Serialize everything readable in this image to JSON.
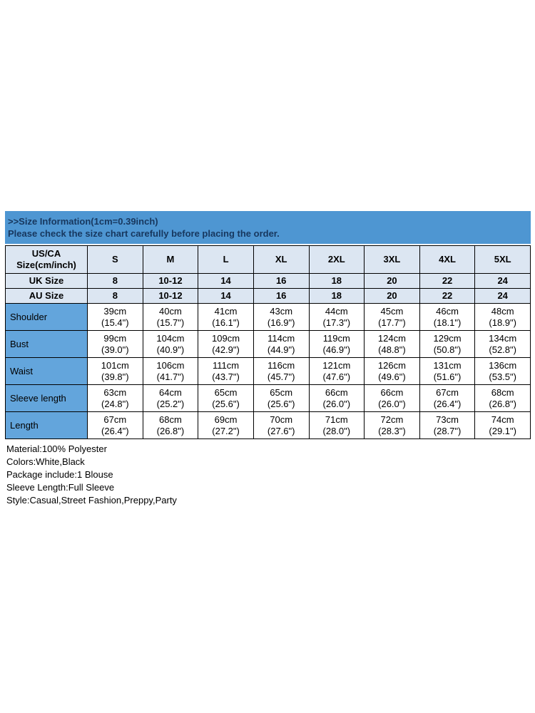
{
  "colors": {
    "banner_bg": "#4E96D2",
    "banner_text": "#17375E",
    "header_row_bg": "#DCE6F2",
    "label_col_bg": "#63A5DC",
    "border": "#000000",
    "cell_bg": "#FFFFFF",
    "text": "#000000"
  },
  "banner": {
    "line1": ">>Size Information(1cm=0.39inch)",
    "line2": "Please check the size chart carefully before placing the order."
  },
  "table": {
    "corner_line1": "US/CA",
    "corner_line2": "Size(cm/inch)",
    "sizes": [
      "S",
      "M",
      "L",
      "XL",
      "2XL",
      "3XL",
      "4XL",
      "5XL"
    ],
    "uk": {
      "label": "UK Size",
      "values": [
        "8",
        "10-12",
        "14",
        "16",
        "18",
        "20",
        "22",
        "24"
      ]
    },
    "au": {
      "label": "AU Size",
      "values": [
        "8",
        "10-12",
        "14",
        "16",
        "18",
        "20",
        "22",
        "24"
      ]
    },
    "measurements": [
      {
        "label": "Shoulder",
        "cm": [
          "39cm",
          "40cm",
          "41cm",
          "43cm",
          "44cm",
          "45cm",
          "46cm",
          "48cm"
        ],
        "inch": [
          "(15.4\")",
          "(15.7\")",
          "(16.1\")",
          "(16.9\")",
          "(17.3\")",
          "(17.7\")",
          "(18.1\")",
          "(18.9\")"
        ]
      },
      {
        "label": "Bust",
        "cm": [
          "99cm",
          "104cm",
          "109cm",
          "114cm",
          "119cm",
          "124cm",
          "129cm",
          "134cm"
        ],
        "inch": [
          "(39.0\")",
          "(40.9\")",
          "(42.9\")",
          "(44.9\")",
          "(46.9\")",
          "(48.8\")",
          "(50.8\")",
          "(52.8\")"
        ]
      },
      {
        "label": "Waist",
        "cm": [
          "101cm",
          "106cm",
          "111cm",
          "116cm",
          "121cm",
          "126cm",
          "131cm",
          "136cm"
        ],
        "inch": [
          "(39.8\")",
          "(41.7\")",
          "(43.7\")",
          "(45.7\")",
          "(47.6\")",
          "(49.6\")",
          "(51.6\")",
          "(53.5\")"
        ]
      },
      {
        "label": "Sleeve length",
        "cm": [
          "63cm",
          "64cm",
          "65cm",
          "65cm",
          "66cm",
          "66cm",
          "67cm",
          "68cm"
        ],
        "inch": [
          "(24.8\")",
          "(25.2\")",
          "(25.6\")",
          "(25.6\")",
          "(26.0\")",
          "(26.0\")",
          "(26.4\")",
          "(26.8\")"
        ]
      },
      {
        "label": "Length",
        "cm": [
          "67cm",
          "68cm",
          "69cm",
          "70cm",
          "71cm",
          "72cm",
          "73cm",
          "74cm"
        ],
        "inch": [
          "(26.4\")",
          "(26.8\")",
          "(27.2\")",
          "(27.6\")",
          "(28.0\")",
          "(28.3\")",
          "(28.7\")",
          "(29.1\")"
        ]
      }
    ]
  },
  "details": [
    "Material:100% Polyester",
    "Colors:White,Black",
    "Package include:1 Blouse",
    "Sleeve Length:Full Sleeve",
    "Style:Casual,Street Fashion,Preppy,Party"
  ]
}
